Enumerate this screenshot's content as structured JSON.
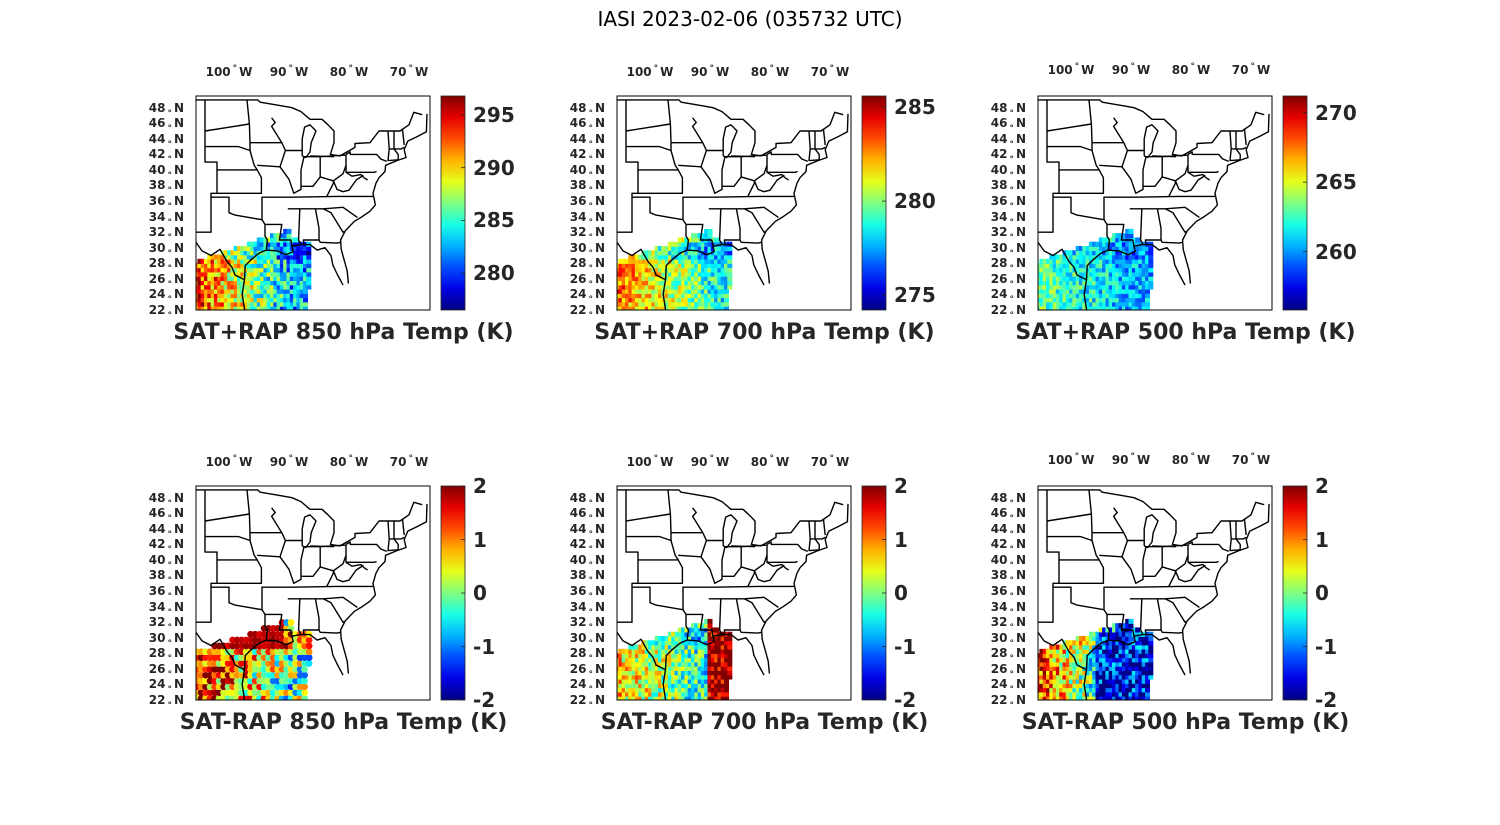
{
  "figure_title": "IASI 2023-02-06 (035732 UTC)",
  "lon_labels": [
    {
      "deg": "100",
      "dir": "W",
      "lon": -100
    },
    {
      "deg": "90",
      "dir": "W",
      "lon": -90
    },
    {
      "deg": "80",
      "dir": "W",
      "lon": -80
    },
    {
      "deg": "70",
      "dir": "W",
      "lon": -70
    }
  ],
  "lat_labels": [
    {
      "deg": "48",
      "dir": "N",
      "lat": 48
    },
    {
      "deg": "46",
      "dir": "N",
      "lat": 46
    },
    {
      "deg": "44",
      "dir": "N",
      "lat": 44
    },
    {
      "deg": "42",
      "dir": "N",
      "lat": 42
    },
    {
      "deg": "40",
      "dir": "N",
      "lat": 40
    },
    {
      "deg": "38",
      "dir": "N",
      "lat": 38
    },
    {
      "deg": "36",
      "dir": "N",
      "lat": 36
    },
    {
      "deg": "34",
      "dir": "N",
      "lat": 34
    },
    {
      "deg": "32",
      "dir": "N",
      "lat": 32
    },
    {
      "deg": "30",
      "dir": "N",
      "lat": 30
    },
    {
      "deg": "28",
      "dir": "N",
      "lat": 28
    },
    {
      "deg": "26",
      "dir": "N",
      "lat": 26
    },
    {
      "deg": "24",
      "dir": "N",
      "lat": 24
    },
    {
      "deg": "22",
      "dir": "N",
      "lat": 22
    }
  ],
  "colormap": "jet",
  "panels": [
    {
      "title": "SAT+RAP 850 hPa Temp (K)",
      "colorbar": {
        "min": 276.5,
        "max": 296.8,
        "ticks": [
          {
            "value": 280,
            "label": "280"
          },
          {
            "value": 285,
            "label": "285"
          },
          {
            "value": 290,
            "label": "290"
          },
          {
            "value": 295,
            "label": "295"
          }
        ]
      },
      "field": {
        "base": 0.55,
        "west": 0.85,
        "east": 0.3,
        "coast": -0.1,
        "noise": 0.1
      }
    },
    {
      "title": "SAT+RAP 700 hPa Temp (K)",
      "colorbar": {
        "min": 274.2,
        "max": 285.6,
        "ticks": [
          {
            "value": 275,
            "label": "275"
          },
          {
            "value": 280,
            "label": "280"
          },
          {
            "value": 285,
            "label": "285"
          }
        ]
      },
      "field": {
        "base": 0.55,
        "west": 0.78,
        "east": 0.4,
        "coast": -0.12,
        "noise": 0.08
      }
    },
    {
      "title": "SAT+RAP 500 hPa Temp (K)",
      "colorbar": {
        "min": 255.8,
        "max": 271.2,
        "ticks": [
          {
            "value": 260,
            "label": "260"
          },
          {
            "value": 265,
            "label": "265"
          },
          {
            "value": 270,
            "label": "270"
          }
        ]
      },
      "field": {
        "base": 0.42,
        "west": 0.48,
        "east": 0.3,
        "coast": -0.05,
        "noise": 0.07
      }
    },
    {
      "title": "SAT-RAP 850 hPa Temp (K)",
      "colorbar": {
        "min": -2,
        "max": 2,
        "ticks": [
          {
            "value": -2,
            "label": "-2"
          },
          {
            "value": -1,
            "label": "-1"
          },
          {
            "value": 0,
            "label": "0"
          },
          {
            "value": 1,
            "label": "1"
          },
          {
            "value": 2,
            "label": "2"
          }
        ]
      },
      "field": {
        "base": 0.55,
        "west": 0.9,
        "east": 0.45,
        "coast": 0.3,
        "noise": 0.15,
        "dots": true
      }
    },
    {
      "title": "SAT-RAP 700 hPa Temp (K)",
      "colorbar": {
        "min": -2,
        "max": 2,
        "ticks": [
          {
            "value": -2,
            "label": "-2"
          },
          {
            "value": -1,
            "label": "-1"
          },
          {
            "value": 0,
            "label": "0"
          },
          {
            "value": 1,
            "label": "1"
          },
          {
            "value": 2,
            "label": "2"
          }
        ]
      },
      "field": {
        "base": 0.55,
        "west": 0.68,
        "east": 0.38,
        "coast": -0.05,
        "noise": 0.1,
        "eastband": 0.97
      }
    },
    {
      "title": "SAT-RAP 500 hPa Temp (K)",
      "colorbar": {
        "min": -2,
        "max": 2,
        "ticks": [
          {
            "value": -2,
            "label": "-2"
          },
          {
            "value": -1,
            "label": "-1"
          },
          {
            "value": 0,
            "label": "0"
          },
          {
            "value": 1,
            "label": "1"
          },
          {
            "value": 2,
            "label": "2"
          }
        ]
      },
      "field": {
        "base": 0.6,
        "west": 0.85,
        "east": 0.12,
        "coast": 0.05,
        "noise": 0.12,
        "eastcold": true
      }
    }
  ]
}
